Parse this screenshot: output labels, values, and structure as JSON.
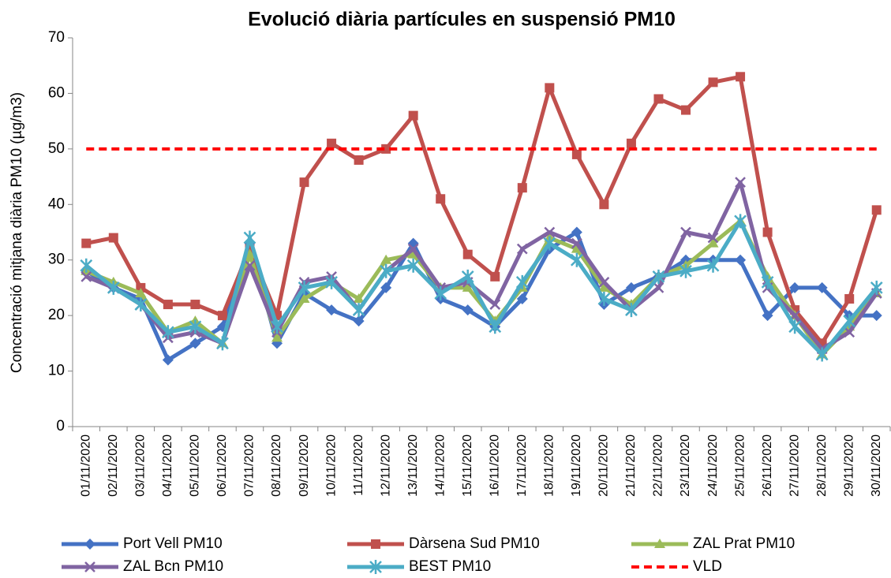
{
  "chart_data": {
    "type": "line",
    "title": "Evolució diària partícules en suspensió PM10",
    "y_label": "Concentració mitjana diària PM10 (µg/m3)",
    "categories": [
      "01/11/2020",
      "02/11/2020",
      "03/11/2020",
      "04/11/2020",
      "05/11/2020",
      "06/11/2020",
      "07/11/2020",
      "08/11/2020",
      "09/11/2020",
      "10/11/2020",
      "11/11/2020",
      "12/11/2020",
      "13/11/2020",
      "14/11/2020",
      "15/11/2020",
      "16/11/2020",
      "17/11/2020",
      "18/11/2020",
      "19/11/2020",
      "20/11/2020",
      "21/11/2020",
      "22/11/2020",
      "23/11/2020",
      "24/11/2020",
      "25/11/2020",
      "26/11/2020",
      "27/11/2020",
      "28/11/2020",
      "29/11/2020",
      "30/11/2020"
    ],
    "series": [
      {
        "name": "Port Vell PM10",
        "color": "#4472c4",
        "marker": "diamond",
        "values": [
          28,
          25,
          23,
          12,
          15,
          18,
          33,
          15,
          24,
          21,
          19,
          25,
          33,
          23,
          21,
          18,
          23,
          32,
          35,
          22,
          25,
          27,
          30,
          30,
          30,
          20,
          25,
          25,
          20,
          20
        ]
      },
      {
        "name": "Dàrsena Sud PM10",
        "color": "#c0504d",
        "marker": "square",
        "values": [
          33,
          34,
          25,
          22,
          22,
          20,
          32,
          20,
          44,
          51,
          48,
          50,
          56,
          41,
          31,
          27,
          43,
          61,
          49,
          40,
          51,
          59,
          57,
          62,
          63,
          35,
          21,
          15,
          23,
          39
        ]
      },
      {
        "name": "ZAL Prat PM10",
        "color": "#9bbb59",
        "marker": "triangle",
        "values": [
          28,
          26,
          24,
          17,
          19,
          15,
          31,
          16,
          23,
          26,
          23,
          30,
          31,
          25,
          25,
          19,
          25,
          34,
          32,
          25,
          22,
          27,
          29,
          33,
          37,
          27,
          20,
          13,
          18,
          24
        ]
      },
      {
        "name": "ZAL Bcn PM10",
        "color": "#8064a2",
        "marker": "x",
        "values": [
          27,
          25,
          22,
          16,
          17,
          15,
          29,
          17,
          26,
          27,
          21,
          28,
          32,
          25,
          26,
          22,
          32,
          35,
          33,
          26,
          21,
          25,
          35,
          34,
          44,
          25,
          20,
          14,
          17,
          24
        ]
      },
      {
        "name": "BEST PM10",
        "color": "#4bacc6",
        "marker": "star",
        "values": [
          29,
          25,
          22,
          17,
          18,
          15,
          34,
          18,
          25,
          26,
          21,
          28,
          29,
          24,
          27,
          18,
          26,
          33,
          30,
          23,
          21,
          27,
          28,
          29,
          37,
          26,
          18,
          13,
          19,
          25
        ]
      },
      {
        "name": "VLD",
        "color": "#ff0000",
        "marker": "none",
        "dash": true,
        "values": [
          50,
          50,
          50,
          50,
          50,
          50,
          50,
          50,
          50,
          50,
          50,
          50,
          50,
          50,
          50,
          50,
          50,
          50,
          50,
          50,
          50,
          50,
          50,
          50,
          50,
          50,
          50,
          50,
          50,
          50
        ]
      }
    ],
    "ylim": [
      0,
      70
    ],
    "yticks": [
      0,
      10,
      20,
      30,
      40,
      50,
      60,
      70
    ],
    "grid": false
  }
}
